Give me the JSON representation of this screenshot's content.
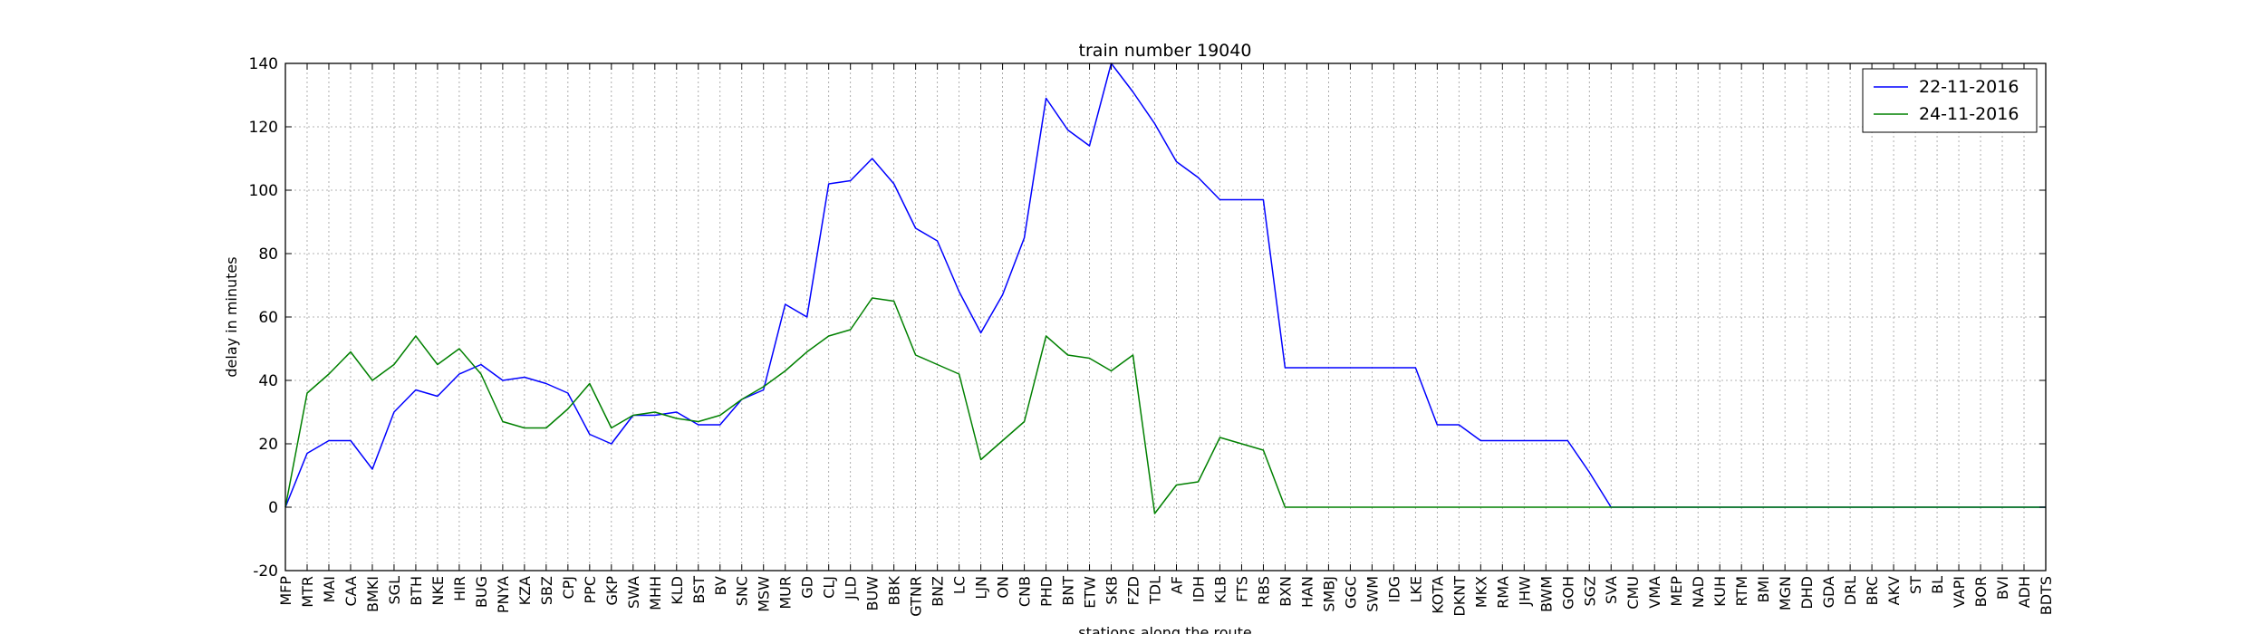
{
  "chart_data": {
    "type": "line",
    "title": "train number 19040",
    "xlabel": "stations along the route",
    "ylabel": "delay in minutes",
    "ylim": [
      -20,
      140
    ],
    "yticks": [
      -20,
      0,
      20,
      40,
      60,
      80,
      100,
      120,
      140
    ],
    "grid": true,
    "legend_position": "top-right",
    "categories": [
      "MFP",
      "MTR",
      "MAI",
      "CAA",
      "BMKI",
      "SGL",
      "BTH",
      "NKE",
      "HIR",
      "BUG",
      "PNYA",
      "KZA",
      "SBZ",
      "CPJ",
      "PPC",
      "GKP",
      "SWA",
      "MHH",
      "KLD",
      "BST",
      "BV",
      "SNC",
      "MSW",
      "MUR",
      "GD",
      "CLJ",
      "JLD",
      "BUW",
      "BBK",
      "GTNR",
      "BNZ",
      "LC",
      "LJN",
      "ON",
      "CNB",
      "PHD",
      "BNT",
      "ETW",
      "SKB",
      "FZD",
      "TDL",
      "AF",
      "IDH",
      "KLB",
      "FTS",
      "RBS",
      "BXN",
      "HAN",
      "SMBJ",
      "GGC",
      "SWM",
      "IDG",
      "LKE",
      "KOTA",
      "DKNT",
      "MKX",
      "RMA",
      "JHW",
      "BWM",
      "GOH",
      "SGZ",
      "SVA",
      "CMU",
      "VMA",
      "MEP",
      "NAD",
      "KUH",
      "RTM",
      "BMI",
      "MGN",
      "DHD",
      "GDA",
      "DRL",
      "BRC",
      "AKV",
      "ST",
      "BL",
      "VAPI",
      "BOR",
      "BVI",
      "ADH",
      "BDTS"
    ],
    "series": [
      {
        "name": "22-11-2016",
        "color": "#0000ff",
        "values": [
          0,
          17,
          21,
          21,
          12,
          30,
          37,
          35,
          42,
          45,
          40,
          41,
          39,
          36,
          23,
          20,
          29,
          29,
          30,
          26,
          26,
          34,
          37,
          64,
          60,
          102,
          103,
          110,
          102,
          88,
          84,
          68,
          55,
          67,
          85,
          129,
          119,
          114,
          140,
          131,
          121,
          109,
          104,
          97,
          97,
          97,
          44,
          44,
          44,
          44,
          44,
          44,
          44,
          26,
          26,
          21,
          21,
          21,
          21,
          21,
          11,
          0,
          0,
          0,
          0,
          0,
          0,
          0,
          0,
          0,
          0,
          0,
          0,
          0,
          0,
          0,
          0,
          0,
          0,
          0,
          0,
          0
        ]
      },
      {
        "name": "24-11-2016",
        "color": "#008000",
        "values": [
          0,
          36,
          42,
          49,
          40,
          45,
          54,
          45,
          50,
          42,
          27,
          25,
          25,
          31,
          39,
          25,
          29,
          30,
          28,
          27,
          29,
          34,
          38,
          43,
          49,
          54,
          56,
          66,
          65,
          48,
          45,
          42,
          15,
          21,
          27,
          54,
          48,
          47,
          43,
          48,
          -2,
          7,
          8,
          22,
          20,
          18,
          0,
          0,
          0,
          0,
          0,
          0,
          0,
          0,
          0,
          0,
          0,
          0,
          0,
          0,
          0,
          0,
          0,
          0,
          0,
          0,
          0,
          0,
          0,
          0,
          0,
          0,
          0,
          0,
          0,
          0,
          0,
          0,
          0,
          0,
          0,
          0
        ]
      }
    ]
  }
}
